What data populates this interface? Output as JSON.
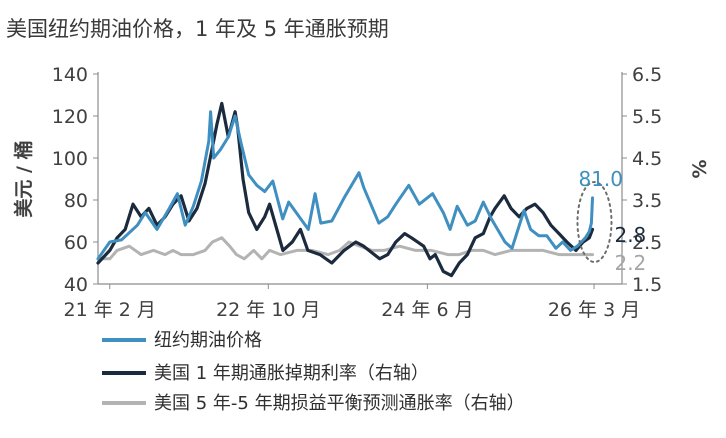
{
  "chart_data": {
    "type": "line",
    "title": "美国纽约期油价格，1 年及 5 年通胀预期",
    "ylabel": "美元 / 桶",
    "y2label": "%",
    "ylim": [
      40,
      140
    ],
    "y2lim": [
      1.5,
      6.5
    ],
    "yticks": [
      "40",
      "60",
      "80",
      "100",
      "120",
      "140"
    ],
    "y2ticks": [
      "1.5",
      "2.5",
      "3.5",
      "4.5",
      "5.5",
      "6.5"
    ],
    "xrange": [
      "2021-01-01",
      "2026-06-30"
    ],
    "xticks": [
      {
        "date": "2021-02-15",
        "label": "21 年 2 月"
      },
      {
        "date": "2022-10-15",
        "label": "22 年 10 月"
      },
      {
        "date": "2024-06-15",
        "label": "24 年 6 月"
      },
      {
        "date": "2026-03-15",
        "label": "26 年 3 月"
      }
    ],
    "grid": false,
    "legend_position": "bottom",
    "series": [
      {
        "name": "纽约期油价格",
        "axis": "left",
        "color": "#3f8fc0",
        "points": [
          [
            "2021-01-01",
            52
          ],
          [
            "2021-02-15",
            60
          ],
          [
            "2021-04-01",
            61
          ],
          [
            "2021-06-01",
            68
          ],
          [
            "2021-07-01",
            74
          ],
          [
            "2021-08-15",
            66
          ],
          [
            "2021-10-01",
            76
          ],
          [
            "2021-11-01",
            83
          ],
          [
            "2021-12-01",
            68
          ],
          [
            "2022-01-01",
            77
          ],
          [
            "2022-02-01",
            89
          ],
          [
            "2022-03-01",
            108
          ],
          [
            "2022-03-08",
            122
          ],
          [
            "2022-03-20",
            100
          ],
          [
            "2022-04-15",
            104
          ],
          [
            "2022-05-15",
            110
          ],
          [
            "2022-06-10",
            120
          ],
          [
            "2022-07-01",
            108
          ],
          [
            "2022-08-01",
            92
          ],
          [
            "2022-09-01",
            87
          ],
          [
            "2022-10-01",
            84
          ],
          [
            "2022-11-01",
            89
          ],
          [
            "2022-12-09",
            71
          ],
          [
            "2023-01-01",
            79
          ],
          [
            "2023-03-17",
            66
          ],
          [
            "2023-04-12",
            83
          ],
          [
            "2023-05-04",
            69
          ],
          [
            "2023-06-15",
            70
          ],
          [
            "2023-08-01",
            81
          ],
          [
            "2023-09-27",
            93
          ],
          [
            "2023-10-15",
            86
          ],
          [
            "2023-12-12",
            69
          ],
          [
            "2024-01-15",
            72
          ],
          [
            "2024-02-15",
            78
          ],
          [
            "2024-04-05",
            87
          ],
          [
            "2024-05-15",
            78
          ],
          [
            "2024-07-05",
            83
          ],
          [
            "2024-08-15",
            74
          ],
          [
            "2024-09-10",
            66
          ],
          [
            "2024-10-07",
            77
          ],
          [
            "2024-11-15",
            68
          ],
          [
            "2024-12-15",
            70
          ],
          [
            "2025-01-15",
            79
          ],
          [
            "2025-02-15",
            71
          ],
          [
            "2025-04-08",
            60
          ],
          [
            "2025-05-05",
            57
          ],
          [
            "2025-06-20",
            75
          ],
          [
            "2025-07-15",
            66
          ],
          [
            "2025-08-15",
            63
          ],
          [
            "2025-09-15",
            63
          ],
          [
            "2025-10-20",
            57
          ],
          [
            "2025-11-15",
            60
          ],
          [
            "2025-12-15",
            56
          ],
          [
            "2026-01-10",
            58
          ],
          [
            "2026-02-10",
            62
          ],
          [
            "2026-02-25",
            65
          ],
          [
            "2026-03-05",
            69
          ],
          [
            "2026-03-09",
            81
          ]
        ]
      },
      {
        "name": "美国 1 年期通胀掉期利率（右轴）",
        "axis": "right",
        "color": "#1b2b3d",
        "points": [
          [
            "2021-01-01",
            2.0
          ],
          [
            "2021-02-15",
            2.3
          ],
          [
            "2021-03-15",
            2.6
          ],
          [
            "2021-04-15",
            2.8
          ],
          [
            "2021-05-15",
            3.4
          ],
          [
            "2021-06-15",
            3.1
          ],
          [
            "2021-07-15",
            3.3
          ],
          [
            "2021-08-15",
            2.9
          ],
          [
            "2021-09-15",
            3.1
          ],
          [
            "2021-10-15",
            3.4
          ],
          [
            "2021-11-15",
            3.6
          ],
          [
            "2021-12-15",
            3.0
          ],
          [
            "2022-01-15",
            3.3
          ],
          [
            "2022-02-15",
            3.9
          ],
          [
            "2022-03-10",
            4.6
          ],
          [
            "2022-04-01",
            5.3
          ],
          [
            "2022-04-20",
            5.8
          ],
          [
            "2022-05-15",
            5.0
          ],
          [
            "2022-06-10",
            5.6
          ],
          [
            "2022-06-20",
            5.2
          ],
          [
            "2022-07-10",
            4.0
          ],
          [
            "2022-08-01",
            3.2
          ],
          [
            "2022-09-01",
            2.8
          ],
          [
            "2022-10-01",
            3.1
          ],
          [
            "2022-10-20",
            3.4
          ],
          [
            "2022-12-10",
            2.3
          ],
          [
            "2023-01-15",
            2.5
          ],
          [
            "2023-02-15",
            2.8
          ],
          [
            "2023-03-15",
            2.3
          ],
          [
            "2023-05-01",
            2.2
          ],
          [
            "2023-06-15",
            2.0
          ],
          [
            "2023-08-01",
            2.3
          ],
          [
            "2023-09-15",
            2.5
          ],
          [
            "2023-10-15",
            2.4
          ],
          [
            "2023-12-15",
            2.1
          ],
          [
            "2024-01-15",
            2.2
          ],
          [
            "2024-02-15",
            2.5
          ],
          [
            "2024-03-20",
            2.7
          ],
          [
            "2024-04-15",
            2.6
          ],
          [
            "2024-06-01",
            2.4
          ],
          [
            "2024-06-25",
            2.1
          ],
          [
            "2024-07-15",
            2.2
          ],
          [
            "2024-08-15",
            1.8
          ],
          [
            "2024-09-15",
            1.7
          ],
          [
            "2024-10-15",
            2.0
          ],
          [
            "2024-11-15",
            2.2
          ],
          [
            "2024-12-15",
            2.6
          ],
          [
            "2025-01-15",
            2.7
          ],
          [
            "2025-02-10",
            3.1
          ],
          [
            "2025-03-01",
            3.3
          ],
          [
            "2025-04-05",
            3.6
          ],
          [
            "2025-05-01",
            3.3
          ],
          [
            "2025-06-01",
            3.1
          ],
          [
            "2025-07-01",
            3.3
          ],
          [
            "2025-08-01",
            3.4
          ],
          [
            "2025-09-01",
            3.2
          ],
          [
            "2025-10-01",
            2.9
          ],
          [
            "2025-11-01",
            2.7
          ],
          [
            "2025-12-01",
            2.5
          ],
          [
            "2026-01-05",
            2.3
          ],
          [
            "2026-02-01",
            2.5
          ],
          [
            "2026-02-25",
            2.6
          ],
          [
            "2026-03-09",
            2.8
          ]
        ]
      },
      {
        "name": "美国 5 年-5 年期损益平衡预测通胀率（右轴）",
        "axis": "right",
        "color": "#b3b3b3",
        "points": [
          [
            "2021-01-01",
            2.1
          ],
          [
            "2021-02-15",
            2.1
          ],
          [
            "2021-03-15",
            2.3
          ],
          [
            "2021-05-01",
            2.4
          ],
          [
            "2021-06-15",
            2.2
          ],
          [
            "2021-08-01",
            2.3
          ],
          [
            "2021-09-15",
            2.2
          ],
          [
            "2021-10-15",
            2.3
          ],
          [
            "2021-11-15",
            2.2
          ],
          [
            "2022-01-01",
            2.2
          ],
          [
            "2022-02-15",
            2.3
          ],
          [
            "2022-03-15",
            2.5
          ],
          [
            "2022-04-20",
            2.6
          ],
          [
            "2022-05-20",
            2.4
          ],
          [
            "2022-06-15",
            2.2
          ],
          [
            "2022-07-15",
            2.1
          ],
          [
            "2022-08-20",
            2.3
          ],
          [
            "2022-09-20",
            2.1
          ],
          [
            "2022-10-20",
            2.3
          ],
          [
            "2022-12-01",
            2.2
          ],
          [
            "2023-02-01",
            2.3
          ],
          [
            "2023-04-01",
            2.3
          ],
          [
            "2023-06-01",
            2.2
          ],
          [
            "2023-07-15",
            2.3
          ],
          [
            "2023-08-20",
            2.5
          ],
          [
            "2023-10-01",
            2.4
          ],
          [
            "2023-11-15",
            2.3
          ],
          [
            "2024-01-01",
            2.3
          ],
          [
            "2024-03-01",
            2.4
          ],
          [
            "2024-05-01",
            2.3
          ],
          [
            "2024-07-01",
            2.3
          ],
          [
            "2024-09-01",
            2.2
          ],
          [
            "2024-10-15",
            2.2
          ],
          [
            "2024-12-01",
            2.3
          ],
          [
            "2025-01-15",
            2.3
          ],
          [
            "2025-03-01",
            2.2
          ],
          [
            "2025-05-01",
            2.3
          ],
          [
            "2025-07-01",
            2.3
          ],
          [
            "2025-09-01",
            2.3
          ],
          [
            "2025-11-01",
            2.2
          ],
          [
            "2026-01-01",
            2.2
          ],
          [
            "2026-02-15",
            2.2
          ],
          [
            "2026-03-09",
            2.2
          ]
        ]
      }
    ],
    "annotations": [
      {
        "text": "81.0",
        "series": 0,
        "color": "#3f8fc0"
      },
      {
        "text": "2.8",
        "series": 1,
        "color": "#1b2b3d"
      },
      {
        "text": "2.2",
        "series": 2,
        "color": "#a6a6a6"
      }
    ]
  }
}
